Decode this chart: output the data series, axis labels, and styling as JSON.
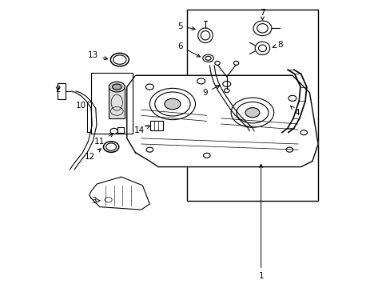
{
  "bg_color": "#ffffff",
  "line_color": "#000000",
  "fig_width": 4.89,
  "fig_height": 3.6,
  "dpi": 100,
  "fontsize": 7.5
}
